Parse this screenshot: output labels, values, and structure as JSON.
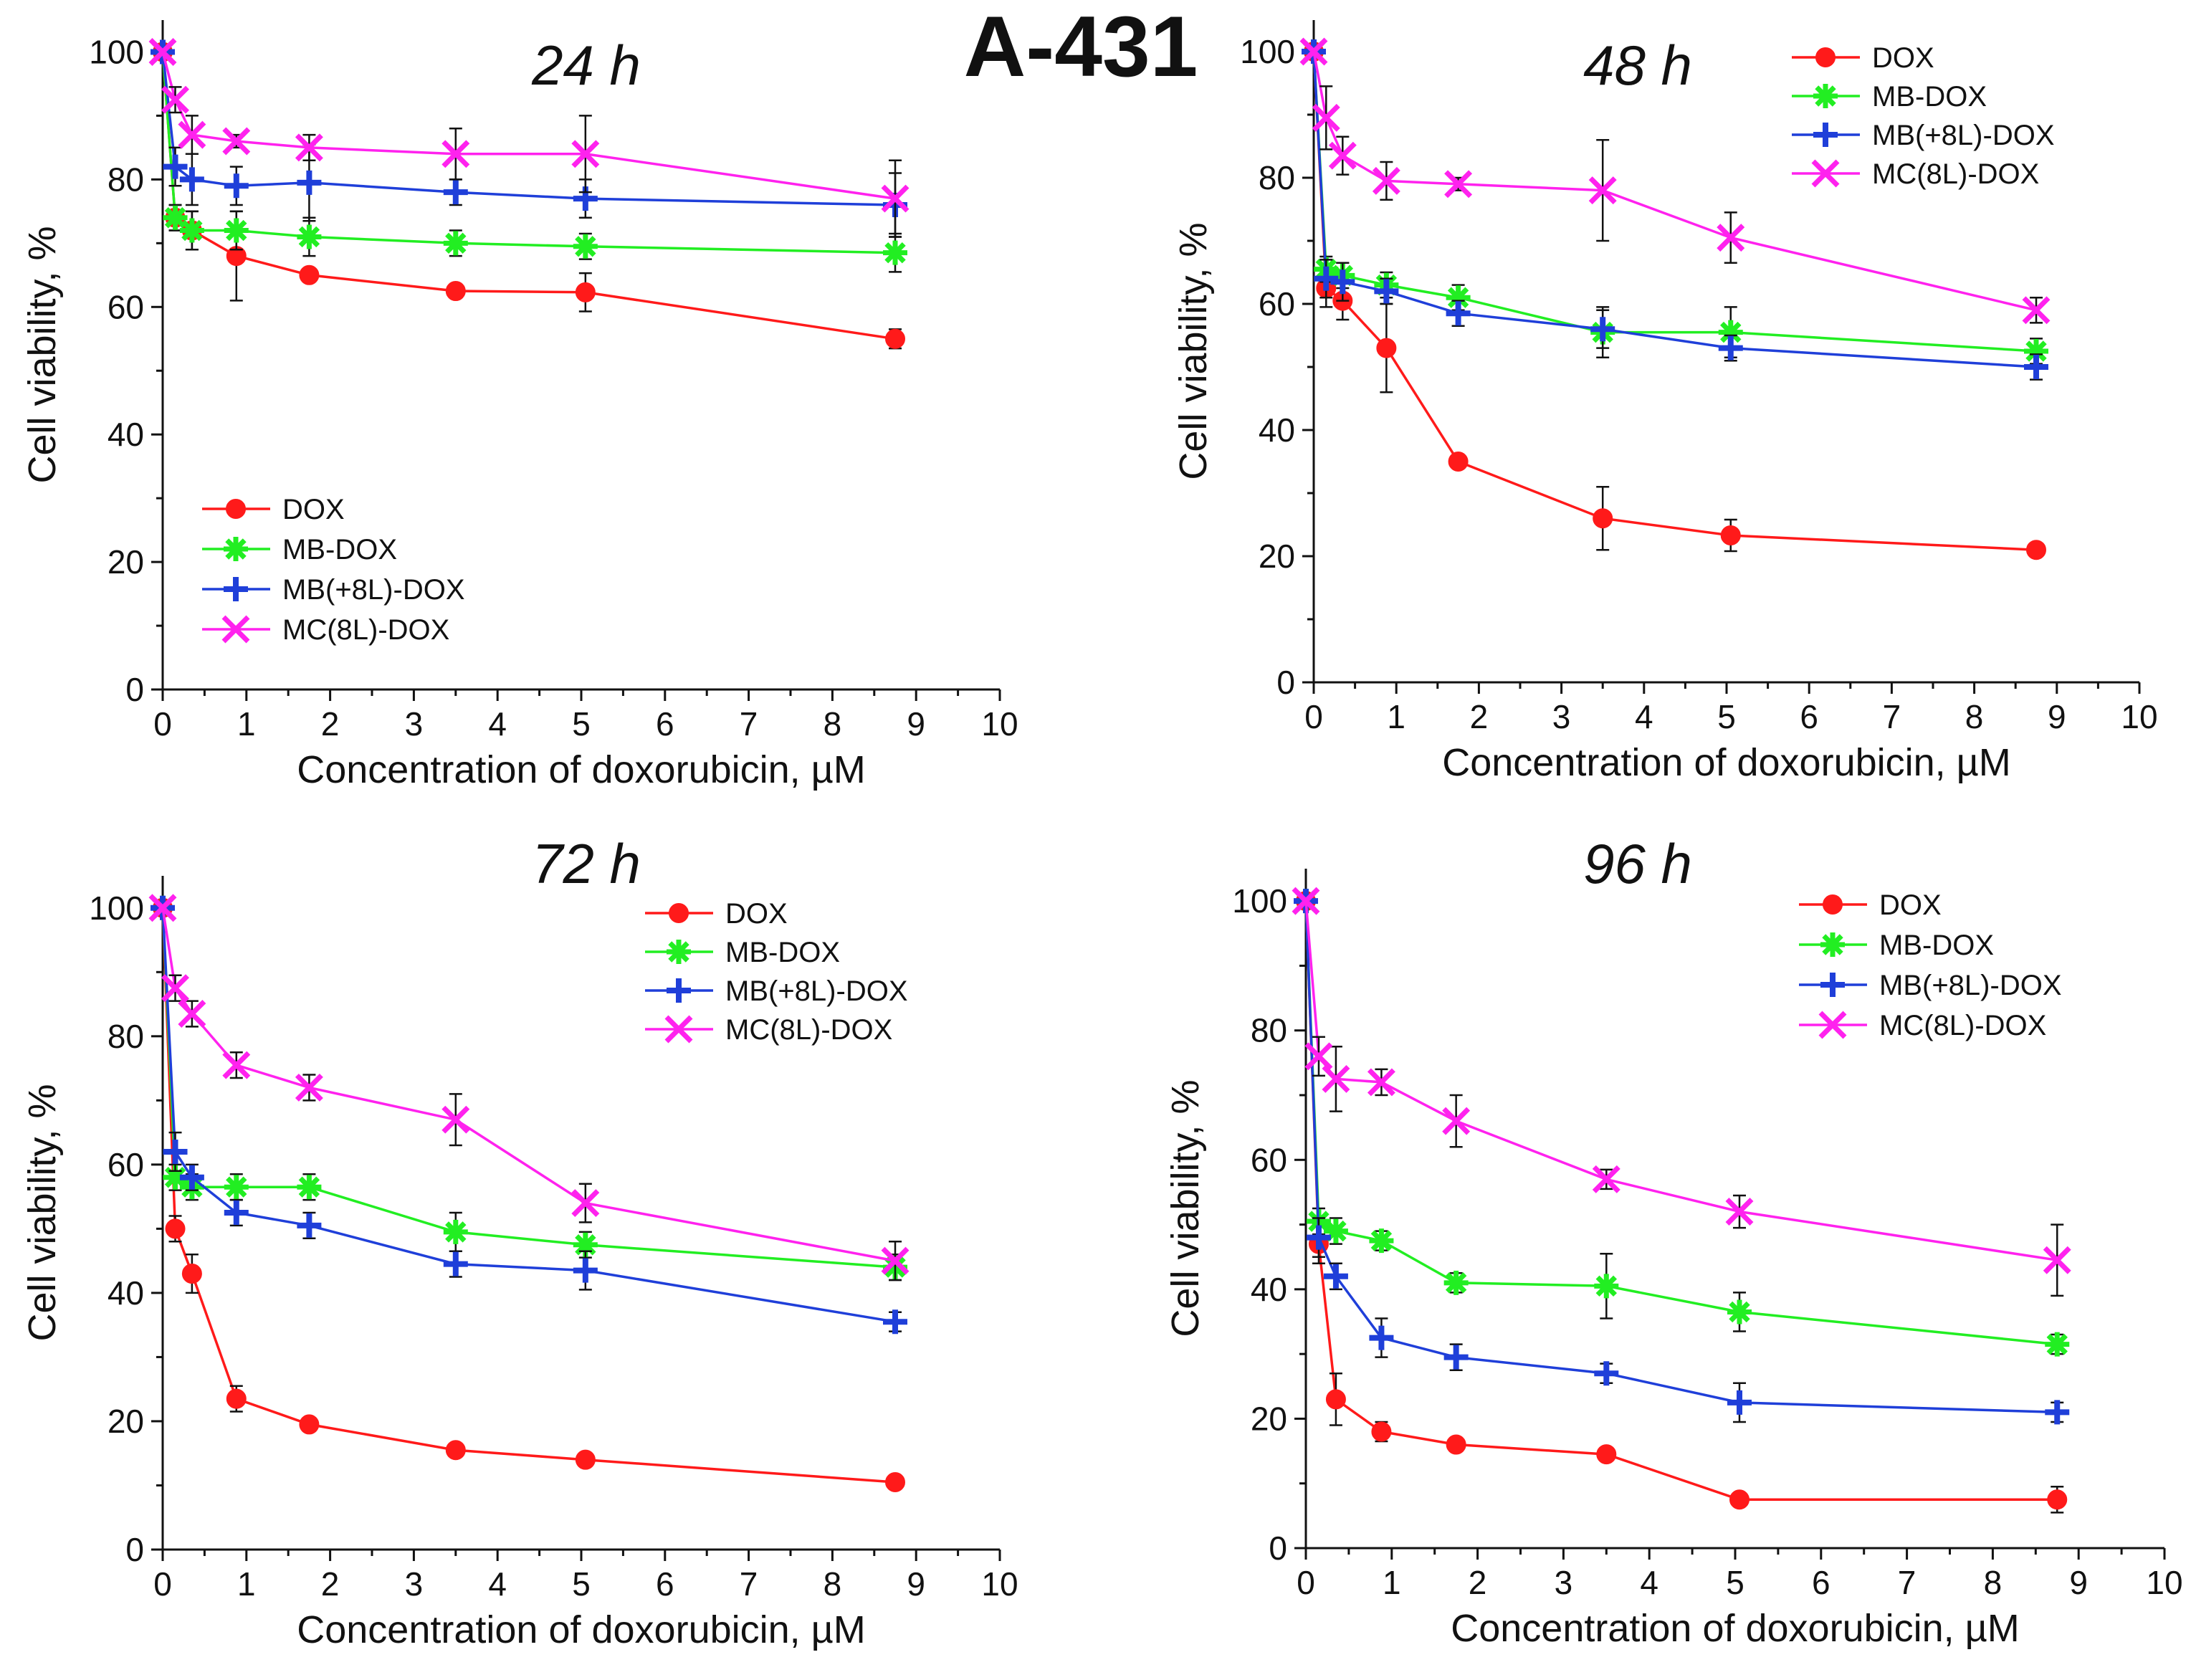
{
  "figure_title": "A-431",
  "colors": {
    "DOX": "#ff1a1a",
    "MB-DOX": "#22ee22",
    "MB(+8L)-DOX": "#1f3fd9",
    "MC(8L)-DOX": "#ff22ee",
    "axis": "#111111",
    "errorbar": "#111111"
  },
  "marker_shapes": {
    "DOX": "circle",
    "MB-DOX": "asterisk",
    "MB(+8L)-DOX": "plus",
    "MC(8L)-DOX": "x"
  },
  "chart_data": [
    {
      "type": "line",
      "title": "24 h",
      "xlabel": "Concentration of doxorubicin, µM",
      "ylabel": "Cell viability, %",
      "xlim": [
        0,
        10
      ],
      "ylim": [
        0,
        105
      ],
      "xticks": [
        0,
        1,
        2,
        3,
        4,
        5,
        6,
        7,
        8,
        9,
        10
      ],
      "yticks": [
        0,
        20,
        40,
        60,
        80,
        100
      ],
      "legend_position": "lower-left",
      "series": [
        {
          "name": "DOX",
          "x": [
            0,
            0.15,
            0.35,
            0.88,
            1.75,
            3.5,
            5.05,
            8.75
          ],
          "y": [
            100,
            74,
            72,
            68,
            65,
            62.5,
            62.3,
            55
          ],
          "err": [
            0,
            2,
            3,
            7,
            1,
            1,
            3,
            1.5
          ]
        },
        {
          "name": "MB-DOX",
          "x": [
            0,
            0.15,
            0.35,
            0.88,
            1.75,
            3.5,
            5.05,
            8.75
          ],
          "y": [
            100,
            74,
            72,
            72,
            71,
            70,
            69.5,
            68.5
          ],
          "err": [
            0,
            2,
            3,
            3,
            3,
            2,
            2,
            3
          ]
        },
        {
          "name": "MB(+8L)-DOX",
          "x": [
            0,
            0.15,
            0.35,
            0.88,
            1.75,
            3.5,
            5.05,
            8.75
          ],
          "y": [
            100,
            82,
            80,
            79,
            79.5,
            78,
            77,
            76
          ],
          "err": [
            0,
            3,
            4,
            3,
            6,
            2,
            3,
            5
          ]
        },
        {
          "name": "MC(8L)-DOX",
          "x": [
            0,
            0.15,
            0.35,
            0.88,
            1.75,
            3.5,
            5.05,
            8.75
          ],
          "y": [
            100,
            92.5,
            87,
            86,
            85,
            84,
            84,
            77
          ],
          "err": [
            0,
            2,
            3,
            1,
            2,
            4,
            6,
            6
          ]
        }
      ]
    },
    {
      "type": "line",
      "title": "48 h",
      "xlabel": "Concentration of doxorubicin, µM",
      "ylabel": "Cell viability, %",
      "xlim": [
        0,
        10
      ],
      "ylim": [
        0,
        105
      ],
      "xticks": [
        0,
        1,
        2,
        3,
        4,
        5,
        6,
        7,
        8,
        9,
        10
      ],
      "yticks": [
        0,
        20,
        40,
        60,
        80,
        100
      ],
      "legend_position": "top-right",
      "series": [
        {
          "name": "DOX",
          "x": [
            0,
            0.15,
            0.35,
            0.88,
            1.75,
            3.5,
            5.05,
            8.75
          ],
          "y": [
            100,
            62.5,
            60.5,
            53,
            35,
            26,
            23.3,
            21
          ],
          "err": [
            0,
            3,
            3,
            7,
            1,
            5,
            2.5,
            1
          ]
        },
        {
          "name": "MB-DOX",
          "x": [
            0,
            0.15,
            0.35,
            0.88,
            1.75,
            3.5,
            5.05,
            8.75
          ],
          "y": [
            100,
            65.5,
            64.5,
            63,
            61,
            55.5,
            55.5,
            52.5
          ],
          "err": [
            0,
            2,
            2,
            2,
            2,
            4,
            4,
            2
          ]
        },
        {
          "name": "MB(+8L)-DOX",
          "x": [
            0,
            0.15,
            0.35,
            0.88,
            1.75,
            3.5,
            5.05,
            8.75
          ],
          "y": [
            100,
            64,
            63.5,
            62,
            58.5,
            56,
            53,
            50
          ],
          "err": [
            0,
            3,
            3,
            2,
            2,
            3,
            2,
            2
          ]
        },
        {
          "name": "MC(8L)-DOX",
          "x": [
            0,
            0.15,
            0.35,
            0.88,
            1.75,
            3.5,
            5.05,
            8.75
          ],
          "y": [
            100,
            89.5,
            83.5,
            79.5,
            79,
            78,
            70.5,
            59
          ],
          "err": [
            0,
            5,
            3,
            3,
            1,
            8,
            4,
            2
          ]
        }
      ]
    },
    {
      "type": "line",
      "title": "72 h",
      "xlabel": "Concentration of doxorubicin, µM",
      "ylabel": "Cell viability, %",
      "xlim": [
        0,
        10
      ],
      "ylim": [
        0,
        105
      ],
      "xticks": [
        0,
        1,
        2,
        3,
        4,
        5,
        6,
        7,
        8,
        9,
        10
      ],
      "yticks": [
        0,
        20,
        40,
        60,
        80,
        100
      ],
      "legend_position": "top-center",
      "series": [
        {
          "name": "DOX",
          "x": [
            0,
            0.15,
            0.35,
            0.88,
            1.75,
            3.5,
            5.05,
            8.75
          ],
          "y": [
            100,
            50,
            43,
            23.5,
            19.5,
            15.5,
            14,
            10.5
          ],
          "err": [
            0,
            2,
            3,
            2,
            1,
            1,
            1,
            1
          ]
        },
        {
          "name": "MB-DOX",
          "x": [
            0,
            0.15,
            0.35,
            0.88,
            1.75,
            3.5,
            5.05,
            8.75
          ],
          "y": [
            100,
            58,
            56.5,
            56.5,
            56.5,
            49.5,
            47.5,
            44
          ],
          "err": [
            0,
            2,
            2,
            2,
            2,
            3,
            2,
            2
          ]
        },
        {
          "name": "MB(+8L)-DOX",
          "x": [
            0,
            0.15,
            0.35,
            0.88,
            1.75,
            3.5,
            5.05,
            8.75
          ],
          "y": [
            100,
            62,
            58,
            52.5,
            50.5,
            44.5,
            43.5,
            35.5
          ],
          "err": [
            0,
            3,
            2,
            2,
            2,
            2,
            3,
            1.5
          ]
        },
        {
          "name": "MC(8L)-DOX",
          "x": [
            0,
            0.15,
            0.35,
            0.88,
            1.75,
            3.5,
            5.05,
            8.75
          ],
          "y": [
            100,
            87.5,
            83.5,
            75.5,
            72,
            67,
            54,
            45
          ],
          "err": [
            0,
            2,
            2,
            2,
            2,
            4,
            3,
            3
          ]
        }
      ]
    },
    {
      "type": "line",
      "title": "96 h",
      "xlabel": "Concentration of doxorubicin, µM",
      "ylabel": "Cell viability, %",
      "xlim": [
        0,
        10
      ],
      "ylim": [
        0,
        105
      ],
      "xticks": [
        0,
        1,
        2,
        3,
        4,
        5,
        6,
        7,
        8,
        9,
        10
      ],
      "yticks": [
        0,
        20,
        40,
        60,
        80,
        100
      ],
      "legend_position": "top-right",
      "series": [
        {
          "name": "DOX",
          "x": [
            0,
            0.15,
            0.35,
            0.88,
            1.75,
            3.5,
            5.05,
            8.75
          ],
          "y": [
            100,
            47,
            23,
            18,
            16,
            14.5,
            7.5,
            7.5
          ],
          "err": [
            0,
            3,
            4,
            1.5,
            1,
            1,
            1,
            2
          ]
        },
        {
          "name": "MB-DOX",
          "x": [
            0,
            0.15,
            0.35,
            0.88,
            1.75,
            3.5,
            5.05,
            8.75
          ],
          "y": [
            100,
            50.5,
            49,
            47.5,
            41,
            40.5,
            36.5,
            31.5
          ],
          "err": [
            0,
            2,
            2,
            1.5,
            1.5,
            5,
            3,
            1.5
          ]
        },
        {
          "name": "MB(+8L)-DOX",
          "x": [
            0,
            0.15,
            0.35,
            0.88,
            1.75,
            3.5,
            5.05,
            8.75
          ],
          "y": [
            100,
            48,
            42,
            32.5,
            29.5,
            27,
            22.5,
            21
          ],
          "err": [
            0,
            3,
            2,
            3,
            2,
            1.5,
            3,
            1.5
          ]
        },
        {
          "name": "MC(8L)-DOX",
          "x": [
            0,
            0.15,
            0.35,
            0.88,
            1.75,
            3.5,
            5.05,
            8.75
          ],
          "y": [
            100,
            76,
            72.5,
            72,
            66,
            57,
            52,
            44.5
          ],
          "err": [
            0,
            3,
            5,
            2,
            4,
            1.5,
            2.5,
            5.5
          ]
        }
      ]
    }
  ]
}
